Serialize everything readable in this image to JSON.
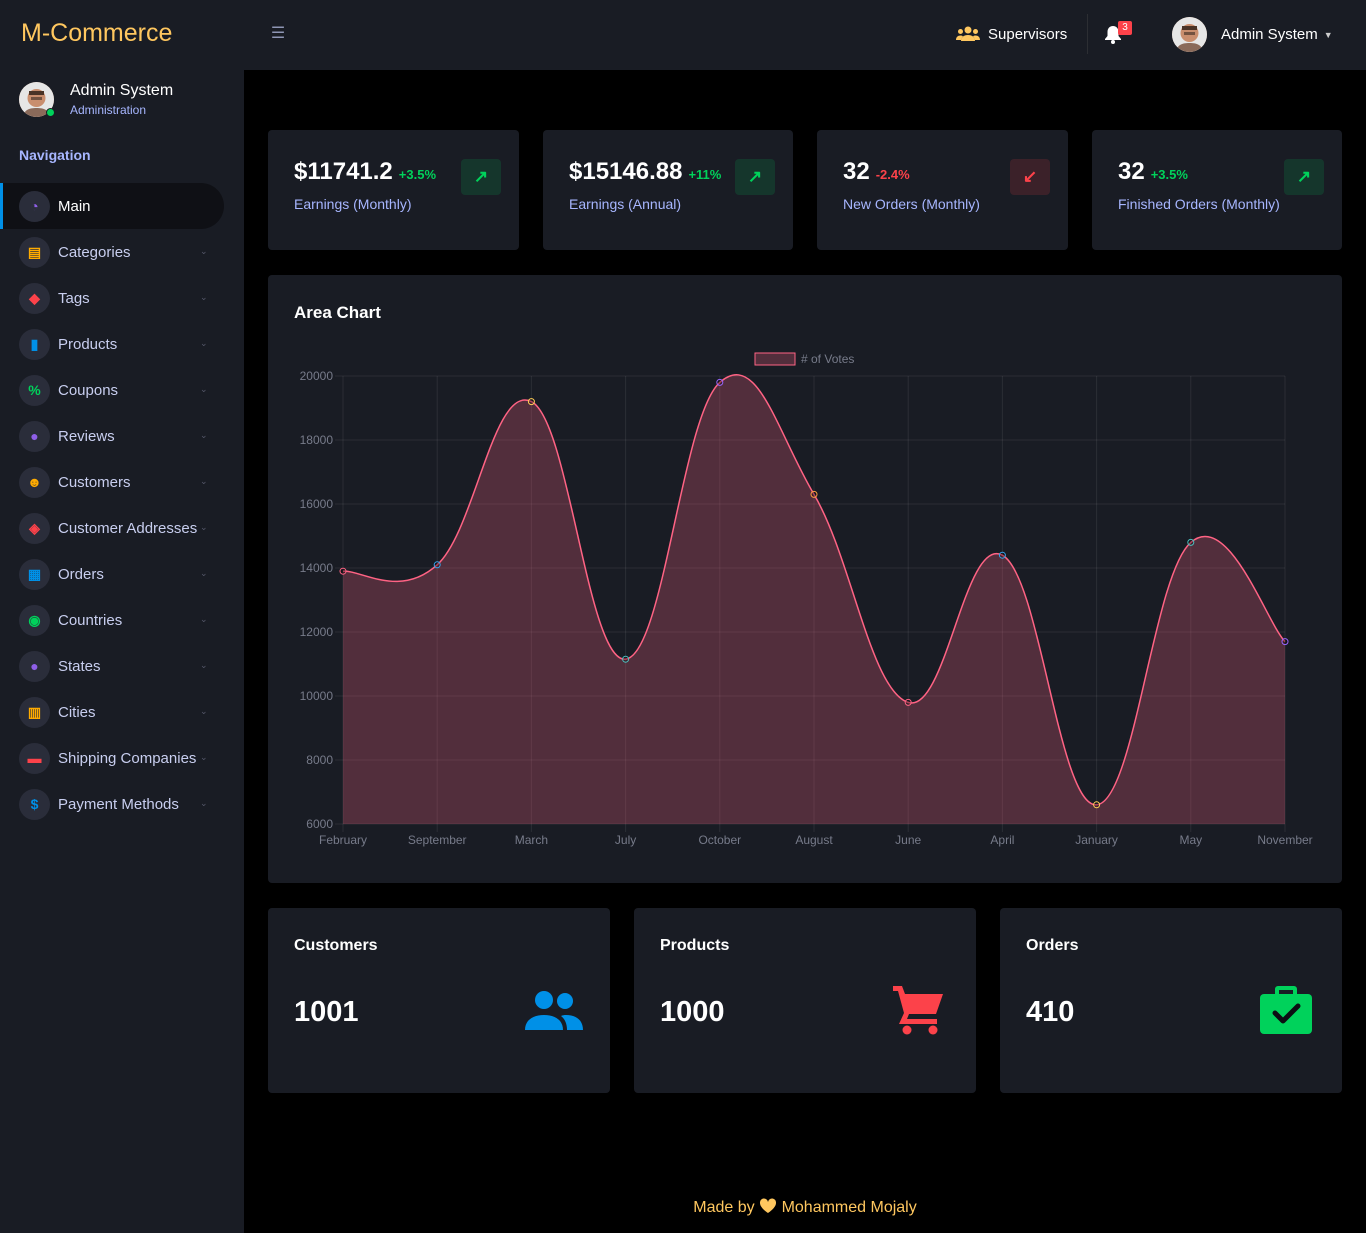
{
  "brand": "M-Commerce",
  "topbar": {
    "supervisors_label": "Supervisors",
    "notification_count": "3",
    "user_name": "Admin System"
  },
  "sidebar": {
    "profile_name": "Admin System",
    "profile_role": "Administration",
    "nav_label": "Navigation",
    "items": [
      {
        "label": "Main",
        "icon": "gauge-icon",
        "glyph": "◔",
        "color": "#8f5fe8"
      },
      {
        "label": "Categories",
        "icon": "file-icon",
        "glyph": "▤",
        "color": "#ffab00"
      },
      {
        "label": "Tags",
        "icon": "tags-icon",
        "glyph": "◆",
        "color": "#fc424a"
      },
      {
        "label": "Products",
        "icon": "product-icon",
        "glyph": "▮",
        "color": "#0090e7"
      },
      {
        "label": "Coupons",
        "icon": "percent-icon",
        "glyph": "%",
        "color": "#00d25b"
      },
      {
        "label": "Reviews",
        "icon": "comment-icon",
        "glyph": "●",
        "color": "#8f5fe8"
      },
      {
        "label": "Customers",
        "icon": "users-icon",
        "glyph": "☻",
        "color": "#ffab00"
      },
      {
        "label": "Customer Addresses",
        "icon": "map-icon",
        "glyph": "◈",
        "color": "#fc424a"
      },
      {
        "label": "Orders",
        "icon": "basket-icon",
        "glyph": "▦",
        "color": "#0090e7"
      },
      {
        "label": "Countries",
        "icon": "globe-icon",
        "glyph": "◉",
        "color": "#00d25b"
      },
      {
        "label": "States",
        "icon": "map-pin-icon",
        "glyph": "●",
        "color": "#8f5fe8"
      },
      {
        "label": "Cities",
        "icon": "building-icon",
        "glyph": "▥",
        "color": "#ffab00"
      },
      {
        "label": "Shipping Companies",
        "icon": "truck-icon",
        "glyph": "▬",
        "color": "#fc424a"
      },
      {
        "label": "Payment Methods",
        "icon": "dollar-icon",
        "glyph": "$",
        "color": "#0090e7"
      }
    ]
  },
  "stats": [
    {
      "value": "$11741.2",
      "percent": "+3.5%",
      "label": "Earnings (Monthly)",
      "trend": "up"
    },
    {
      "value": "$15146.88",
      "percent": "+11%",
      "label": "Earnings (Annual)",
      "trend": "up"
    },
    {
      "value": "32",
      "percent": "-2.4%",
      "label": "New Orders (Monthly)",
      "trend": "down"
    },
    {
      "value": "32",
      "percent": "+3.5%",
      "label": "Finished Orders (Monthly)",
      "trend": "up"
    }
  ],
  "chart_data": {
    "type": "area",
    "title": "Area Chart",
    "categories": [
      "February",
      "September",
      "March",
      "July",
      "October",
      "August",
      "June",
      "April",
      "January",
      "May",
      "November"
    ],
    "series": [
      {
        "name": "# of Votes",
        "values": [
          13900,
          14100,
          19200,
          11150,
          19800,
          16300,
          9800,
          14400,
          6600,
          14800,
          11700
        ]
      }
    ],
    "point_colors": [
      "#ff6384",
      "#36a2eb",
      "#ffce56",
      "#4bc0c0",
      "#9966ff",
      "#ff9f40",
      "#ff6384",
      "#36a2eb",
      "#ffce56",
      "#4bc0c0",
      "#9966ff"
    ],
    "ylim": [
      6000,
      20000
    ],
    "yticks": [
      6000,
      8000,
      10000,
      12000,
      14000,
      16000,
      18000,
      20000
    ],
    "legend_position": "top-center"
  },
  "summary": [
    {
      "title": "Customers",
      "value": "1001",
      "icon": "users-icon"
    },
    {
      "title": "Products",
      "value": "1000",
      "icon": "cart-icon"
    },
    {
      "title": "Orders",
      "value": "410",
      "icon": "briefcase-check-icon"
    }
  ],
  "footer": {
    "prefix": "Made by",
    "author": "Mohammed Mojaly"
  }
}
